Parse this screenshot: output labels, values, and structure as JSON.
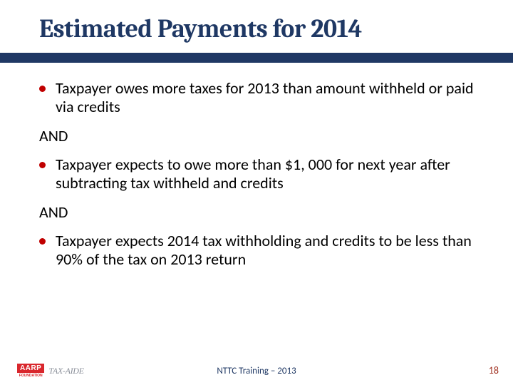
{
  "title": "Estimated Payments for 2014",
  "bullets": [
    {
      "text": "Taxpayer owes more taxes for 2013 than amount withheld or paid via credits",
      "color": "#c00000"
    },
    {
      "text": "Taxpayer expects to owe more than $1, 000 for next year after subtracting tax withheld and credits",
      "color": "#c00000"
    },
    {
      "text": "Taxpayer expects 2014 tax withholding and credits to be less than 90% of the tax on 2013 return",
      "color": "#c00000"
    }
  ],
  "connector": "AND",
  "footer": {
    "logo_main": "AARP",
    "logo_sub": "FOUNDATION",
    "logo_tag": "TAX-AIDE",
    "center": "NTTC Training – 2013",
    "page": "18"
  },
  "colors": {
    "title": "#1f3864",
    "rule": "#1f3864",
    "bullet1": "#c00000",
    "bullet2": "#c00000",
    "bullet3": "#c00000",
    "logo_red": "#d9272d",
    "page_num": "#a03020"
  }
}
